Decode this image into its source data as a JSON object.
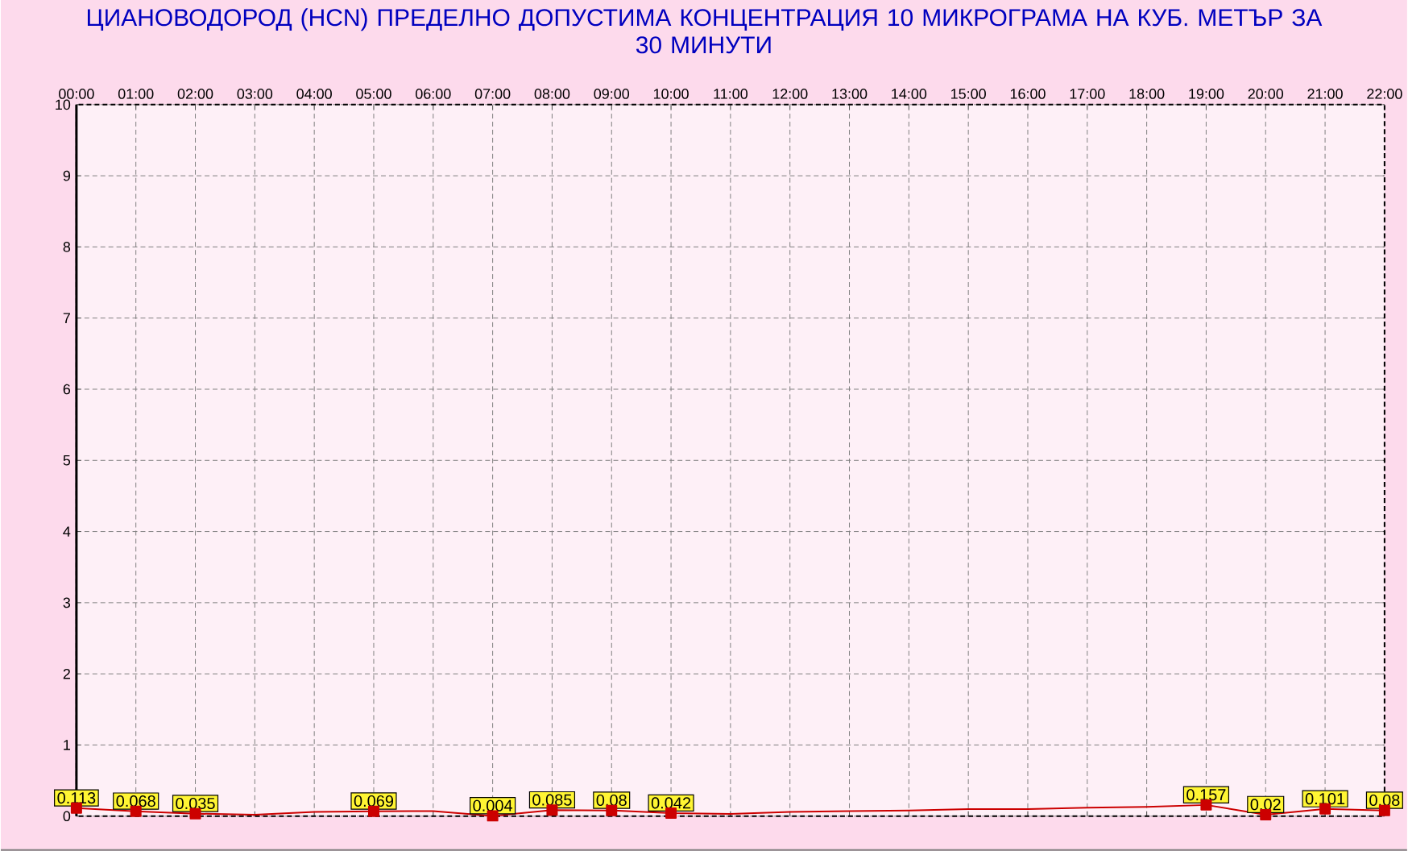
{
  "chart_data": {
    "type": "line",
    "title": "ЦИАНОВОДОРОД      (HCN)    ПРЕДЕЛНО ДОПУСТИМА КОНЦЕНТРАЦИЯ 10 МИКРОГРАМА  НА КУБ. МЕТЪР ЗА 30 МИНУТИ",
    "x": [
      0,
      1,
      2,
      3,
      4,
      5,
      6,
      7,
      8,
      9,
      10,
      11,
      12,
      13,
      14,
      15,
      16,
      17,
      18,
      19,
      20,
      21,
      22
    ],
    "xlim": [
      0,
      22
    ],
    "xticks": [
      {
        "value": 0,
        "label": "00:00"
      },
      {
        "value": 1,
        "label": "01:00"
      },
      {
        "value": 2,
        "label": "02:00"
      },
      {
        "value": 3,
        "label": "03:00"
      },
      {
        "value": 4,
        "label": "04:00"
      },
      {
        "value": 5,
        "label": "05:00"
      },
      {
        "value": 6,
        "label": "06:00"
      },
      {
        "value": 7,
        "label": "07:00"
      },
      {
        "value": 8,
        "label": "08:00"
      },
      {
        "value": 9,
        "label": "09:00"
      },
      {
        "value": 10,
        "label": "10:00"
      },
      {
        "value": 11,
        "label": "11:00"
      },
      {
        "value": 12,
        "label": "12:00"
      },
      {
        "value": 13,
        "label": "13:00"
      },
      {
        "value": 14,
        "label": "14:00"
      },
      {
        "value": 15,
        "label": "15:00"
      },
      {
        "value": 16,
        "label": "16:00"
      },
      {
        "value": 17,
        "label": "17:00"
      },
      {
        "value": 18,
        "label": "18:00"
      },
      {
        "value": 19,
        "label": "19:00"
      },
      {
        "value": 20,
        "label": "20:00"
      },
      {
        "value": 21,
        "label": "21:00"
      },
      {
        "value": 22,
        "label": "22:00"
      }
    ],
    "ylim": [
      0,
      10
    ],
    "yticks": [
      0,
      1,
      2,
      3,
      4,
      5,
      6,
      7,
      8,
      9,
      10
    ],
    "series": [
      {
        "color": "#cc0000",
        "values": [
          0.113,
          0.068,
          0.035,
          0.02,
          0.06,
          0.069,
          0.07,
          0.004,
          0.085,
          0.08,
          0.042,
          0.03,
          0.06,
          0.07,
          0.08,
          0.1,
          0.1,
          0.12,
          0.13,
          0.157,
          0.02,
          0.101,
          0.08
        ],
        "value_labels": [
          "0.113",
          "0.068",
          "0.035",
          null,
          null,
          "0.069",
          null,
          "0.004",
          "0.085",
          "0.08",
          "0.042",
          null,
          null,
          null,
          null,
          null,
          null,
          null,
          null,
          "0.157",
          "0.02",
          "0.101",
          "0.08"
        ]
      }
    ],
    "marker": "square",
    "grid": true
  }
}
